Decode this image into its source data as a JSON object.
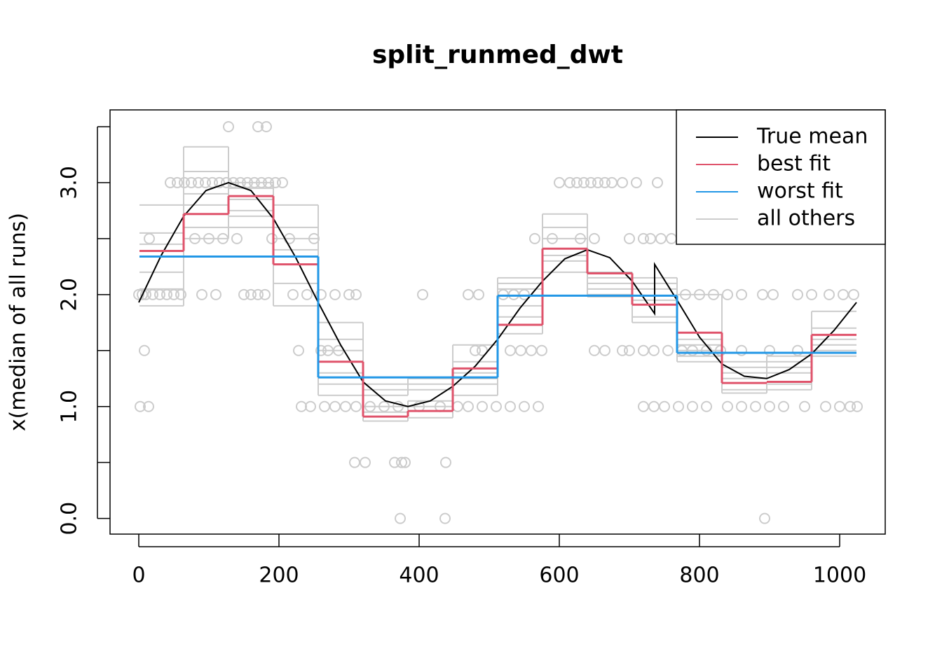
{
  "chart_data": {
    "type": "line",
    "title": "split_runmed_dwt",
    "y_label": "x(median of all runs)",
    "xlim": [
      -41,
      1065
    ],
    "ylim": [
      -0.14,
      3.65
    ],
    "xticks": [
      0,
      200,
      400,
      600,
      800,
      1000
    ],
    "yticks": [
      {
        "value": 0,
        "label": "0.0"
      },
      {
        "value": 1,
        "label": "1.0"
      },
      {
        "value": 2,
        "label": "2.0"
      },
      {
        "value": 3,
        "label": "3.0"
      }
    ],
    "yminor_ticks": [
      0.5,
      1.5,
      2.5,
      3.5
    ],
    "legend": "top-right",
    "points": {
      "color": "#cccccc",
      "x": [
        128,
        170,
        182,
        45,
        55,
        65,
        75,
        85,
        95,
        105,
        115,
        125,
        135,
        145,
        155,
        165,
        175,
        185,
        195,
        205,
        600,
        615,
        625,
        635,
        645,
        655,
        665,
        675,
        690,
        710,
        740,
        15,
        80,
        100,
        120,
        140,
        190,
        215,
        250,
        565,
        590,
        630,
        650,
        700,
        720,
        730,
        745,
        760,
        0,
        5,
        10,
        20,
        30,
        40,
        50,
        60,
        90,
        110,
        150,
        160,
        170,
        180,
        220,
        240,
        260,
        280,
        300,
        310,
        405,
        470,
        485,
        520,
        535,
        550,
        780,
        800,
        820,
        840,
        860,
        890,
        905,
        940,
        960,
        985,
        1005,
        1020,
        8,
        228,
        260,
        270,
        285,
        480,
        490,
        530,
        545,
        560,
        575,
        650,
        665,
        690,
        700,
        720,
        735,
        755,
        775,
        790,
        810,
        830,
        860,
        900,
        940,
        2,
        14,
        232,
        245,
        265,
        280,
        295,
        310,
        330,
        350,
        370,
        400,
        430,
        455,
        470,
        490,
        510,
        530,
        550,
        570,
        720,
        735,
        750,
        770,
        790,
        810,
        840,
        860,
        880,
        900,
        920,
        950,
        980,
        1000,
        1015,
        1025,
        308,
        323,
        365,
        375,
        380,
        438,
        373,
        437,
        893
      ],
      "y": [
        3.5,
        3.5,
        3.5,
        3,
        3,
        3,
        3,
        3,
        3,
        3,
        3,
        3,
        3,
        3,
        3,
        3,
        3,
        3,
        3,
        3,
        3,
        3,
        3,
        3,
        3,
        3,
        3,
        3,
        3,
        3,
        3,
        2.5,
        2.5,
        2.5,
        2.5,
        2.5,
        2.5,
        2.5,
        2.5,
        2.5,
        2.5,
        2.5,
        2.5,
        2.5,
        2.5,
        2.5,
        2.5,
        2.5,
        2,
        2,
        2,
        2,
        2,
        2,
        2,
        2,
        2,
        2,
        2,
        2,
        2,
        2,
        2,
        2,
        2,
        2,
        2,
        2,
        2,
        2,
        2,
        2,
        2,
        2,
        2,
        2,
        2,
        2,
        2,
        2,
        2,
        2,
        2,
        2,
        2,
        2,
        1.5,
        1.5,
        1.5,
        1.5,
        1.5,
        1.5,
        1.5,
        1.5,
        1.5,
        1.5,
        1.5,
        1.5,
        1.5,
        1.5,
        1.5,
        1.5,
        1.5,
        1.5,
        1.5,
        1.5,
        1.5,
        1.5,
        1.5,
        1.5,
        1.5,
        1,
        1,
        1,
        1,
        1,
        1,
        1,
        1,
        1,
        1,
        1,
        1,
        1,
        1,
        1,
        1,
        1,
        1,
        1,
        1,
        1,
        1,
        1,
        1,
        1,
        1,
        1,
        1,
        1,
        1,
        1,
        1,
        1,
        1,
        1,
        1,
        0.5,
        0.5,
        0.5,
        0.5,
        0.5,
        0.5,
        0,
        0,
        0
      ]
    },
    "series": [
      {
        "name": "True mean",
        "color": "#000000",
        "kind": "curve",
        "x": [
          0,
          32,
          64,
          96,
          128,
          160,
          192,
          224,
          256,
          288,
          320,
          352,
          384,
          416,
          448,
          480,
          512,
          544,
          576,
          608,
          640,
          672,
          704,
          736,
          736,
          768,
          800,
          832,
          864,
          896,
          928,
          960,
          992,
          1024
        ],
        "values": [
          1.93,
          2.35,
          2.7,
          2.93,
          3.0,
          2.93,
          2.68,
          2.33,
          1.93,
          1.55,
          1.22,
          1.05,
          1.0,
          1.05,
          1.18,
          1.36,
          1.6,
          1.88,
          2.12,
          2.32,
          2.4,
          2.33,
          2.12,
          1.83,
          2.27,
          1.95,
          1.62,
          1.38,
          1.27,
          1.25,
          1.33,
          1.47,
          1.68,
          1.93
        ]
      },
      {
        "name": "best fit",
        "color": "#df536b",
        "kind": "step",
        "breaks": [
          1,
          64,
          128,
          192,
          256,
          320,
          384,
          448,
          512,
          576,
          640,
          704,
          768,
          832,
          896,
          960,
          1024
        ],
        "values": [
          2.39,
          2.72,
          2.88,
          2.27,
          1.4,
          0.91,
          0.96,
          1.34,
          1.73,
          2.41,
          2.19,
          1.91,
          1.66,
          1.21,
          1.22,
          1.64
        ]
      },
      {
        "name": "worst fit",
        "color": "#2297e6",
        "kind": "step",
        "breaks": [
          1,
          256,
          512,
          768,
          1024
        ],
        "values": [
          2.34,
          1.26,
          1.99,
          1.48
        ]
      },
      {
        "name": "all others",
        "color": "#cccccc",
        "kind": "steps",
        "breaks": [
          1,
          64,
          128,
          192,
          256,
          320,
          384,
          448,
          512,
          576,
          640,
          704,
          768,
          832,
          896,
          960,
          1024
        ],
        "lines": [
          [
            2.55,
            3.1,
            3.0,
            2.5,
            1.6,
            1.1,
            1.15,
            1.4,
            2.05,
            2.6,
            2.15,
            2.1,
            1.55,
            1.3,
            1.35,
            1.7
          ],
          [
            2.2,
            2.9,
            2.95,
            2.4,
            1.3,
            1.0,
            1.05,
            1.25,
            1.9,
            2.3,
            2.05,
            1.95,
            1.5,
            1.15,
            1.2,
            1.55
          ],
          [
            2.8,
            3.32,
            2.75,
            2.8,
            1.75,
            1.2,
            1.25,
            1.55,
            2.15,
            2.72,
            2.2,
            2.15,
            2.0,
            1.4,
            1.45,
            1.85
          ],
          [
            1.9,
            2.6,
            2.85,
            2.1,
            1.2,
            0.87,
            0.9,
            1.1,
            1.65,
            2.35,
            2.0,
            1.75,
            1.45,
            1.12,
            1.15,
            1.45
          ],
          [
            2.45,
            2.8,
            2.7,
            2.6,
            1.5,
            1.15,
            1.2,
            1.3,
            2.1,
            2.5,
            2.1,
            2.05,
            1.6,
            1.35,
            1.4,
            1.6
          ],
          [
            2.05,
            2.5,
            2.6,
            1.9,
            1.1,
            0.95,
            1.0,
            1.2,
            1.8,
            2.2,
            1.98,
            1.8,
            1.4,
            1.25,
            1.3,
            1.5
          ]
        ]
      }
    ]
  }
}
